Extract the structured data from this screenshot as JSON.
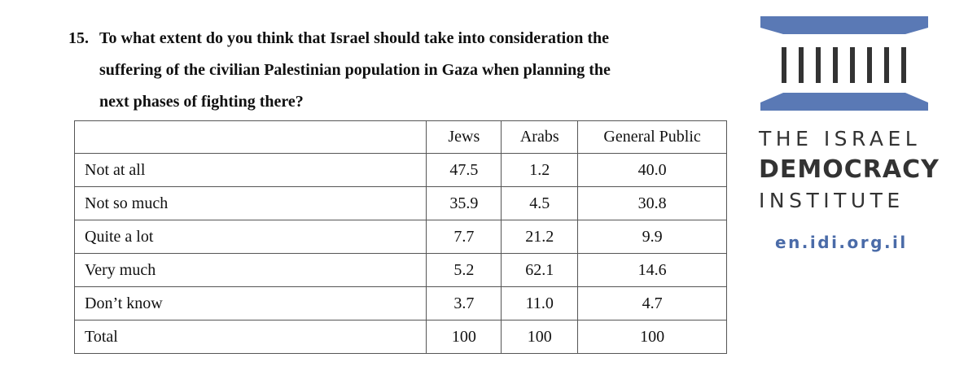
{
  "question": {
    "number": "15.",
    "lines": [
      "To what extent do you think that Israel should take into consideration the",
      "suffering of the civilian Palestinian population in Gaza when planning the",
      "next phases of fighting there?"
    ]
  },
  "table": {
    "headers": [
      "",
      "Jews",
      "Arabs",
      "General Public"
    ],
    "rows": [
      {
        "label": "Not at all",
        "values": [
          "47.5",
          "1.2",
          "40.0"
        ]
      },
      {
        "label": "Not so much",
        "values": [
          "35.9",
          "4.5",
          "30.8"
        ]
      },
      {
        "label": "Quite a lot",
        "values": [
          "7.7",
          "21.2",
          "9.9"
        ]
      },
      {
        "label": "Very much",
        "values": [
          "5.2",
          "62.1",
          "14.6"
        ]
      },
      {
        "label": "Don’t know",
        "values": [
          "3.7",
          "11.0",
          "4.7"
        ]
      },
      {
        "label": "Total",
        "values": [
          "100",
          "100",
          "100"
        ]
      }
    ]
  },
  "logo": {
    "line1": "THE ISRAEL",
    "line2": "DEMOCRACY",
    "line3": "INSTITUTE",
    "url": "en.idi.org.il",
    "accent_color": "#5a79b5",
    "text_color": "#333333"
  }
}
